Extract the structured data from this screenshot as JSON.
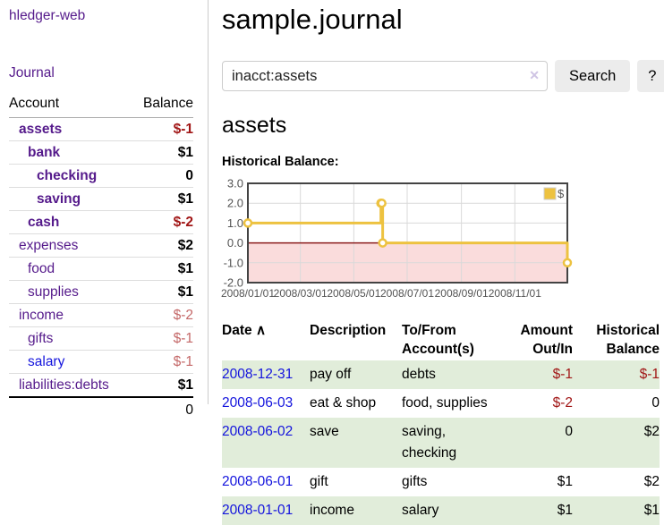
{
  "app": {
    "brand": "hledger-web",
    "nav_journal": "Journal"
  },
  "header": {
    "title": "sample.journal"
  },
  "search": {
    "value": "inacct:assets",
    "clear_icon": "✕",
    "button_label": "Search",
    "help_label": "?"
  },
  "account_page": {
    "heading": "assets",
    "chart_label": "Historical Balance:"
  },
  "sidebar": {
    "header": {
      "account": "Account",
      "balance": "Balance"
    },
    "accounts": [
      {
        "name": "assets",
        "indent": 1,
        "bold": true,
        "balance": "$-1",
        "negative": "strong",
        "link_style": "purple"
      },
      {
        "name": "bank",
        "indent": 2,
        "bold": true,
        "balance": "$1",
        "negative": null,
        "link_style": "purple"
      },
      {
        "name": "checking",
        "indent": 3,
        "bold": true,
        "balance": "0",
        "negative": null,
        "link_style": "purple"
      },
      {
        "name": "saving",
        "indent": 3,
        "bold": true,
        "balance": "$1",
        "negative": null,
        "link_style": "purple"
      },
      {
        "name": "cash",
        "indent": 2,
        "bold": true,
        "balance": "$-2",
        "negative": "strong",
        "link_style": "purple"
      },
      {
        "name": "expenses",
        "indent": 1,
        "bold": false,
        "balance": "$2",
        "negative": null,
        "link_style": "purple"
      },
      {
        "name": "food",
        "indent": 2,
        "bold": false,
        "balance": "$1",
        "negative": null,
        "link_style": "purple"
      },
      {
        "name": "supplies",
        "indent": 2,
        "bold": false,
        "balance": "$1",
        "negative": null,
        "link_style": "purple"
      },
      {
        "name": "income",
        "indent": 1,
        "bold": false,
        "balance": "$-2",
        "negative": "soft",
        "link_style": "purple"
      },
      {
        "name": "gifts",
        "indent": 2,
        "bold": false,
        "balance": "$-1",
        "negative": "soft",
        "link_style": "purple"
      },
      {
        "name": "salary",
        "indent": 2,
        "bold": false,
        "balance": "$-1",
        "negative": "soft",
        "link_style": "blue"
      },
      {
        "name": "liabilities:debts",
        "indent": 1,
        "bold": false,
        "balance": "$1",
        "negative": null,
        "link_style": "purple"
      }
    ],
    "total": "0"
  },
  "chart_data": {
    "type": "line",
    "step": true,
    "title": "Historical Balance:",
    "series": [
      {
        "name": "$",
        "color": "#edc240",
        "points": [
          [
            "2008-01-01",
            1
          ],
          [
            "2008-06-01",
            2
          ],
          [
            "2008-06-02",
            2
          ],
          [
            "2008-06-03",
            0
          ],
          [
            "2008-12-31",
            -1
          ]
        ]
      }
    ],
    "xlim": [
      "2008-01-01",
      "2008-12-31"
    ],
    "ylim": [
      -2,
      3
    ],
    "yticks": [
      3.0,
      2.0,
      1.0,
      0.0,
      -1.0,
      -2.0
    ],
    "ytick_labels": [
      "3.0",
      "2.0",
      "1.0",
      "0.0",
      "-1.0",
      "-2.0"
    ],
    "xticks": [
      "2008-01-01",
      "2008-03-01",
      "2008-05-01",
      "2008-07-01",
      "2008-09-01",
      "2008-11-01"
    ],
    "xtick_labels": [
      "2008/01/01",
      "2008/03/01",
      "2008/05/01",
      "2008/07/01",
      "2008/09/01",
      "2008/11/01"
    ],
    "grid": true,
    "legend_position": "top-right",
    "negative_region_fill": "#fadcdc",
    "zero_line_color": "#8b1d1d",
    "grid_color": "#d9d9d9",
    "border_color": "#434343"
  },
  "register": {
    "columns": [
      "Date",
      "Description",
      "To/From Account(s)",
      "Amount Out/In",
      "Historical Balance"
    ],
    "sort_icon": "∧",
    "rows": [
      {
        "date": "2008-12-31",
        "description": "pay off",
        "accounts": "debts",
        "amount": "$-1",
        "balance": "$-1",
        "shaded": true
      },
      {
        "date": "2008-06-03",
        "description": "eat & shop",
        "accounts": "food, supplies",
        "amount": "$-2",
        "balance": "0",
        "shaded": false
      },
      {
        "date": "2008-06-02",
        "description": "save",
        "accounts": "saving, checking",
        "amount": "0",
        "balance": "$2",
        "shaded": true
      },
      {
        "date": "2008-06-01",
        "description": "gift",
        "accounts": "gifts",
        "amount": "$1",
        "balance": "$2",
        "shaded": false
      },
      {
        "date": "2008-01-01",
        "description": "income",
        "accounts": "salary",
        "amount": "$1",
        "balance": "$1",
        "shaded": true
      }
    ]
  }
}
